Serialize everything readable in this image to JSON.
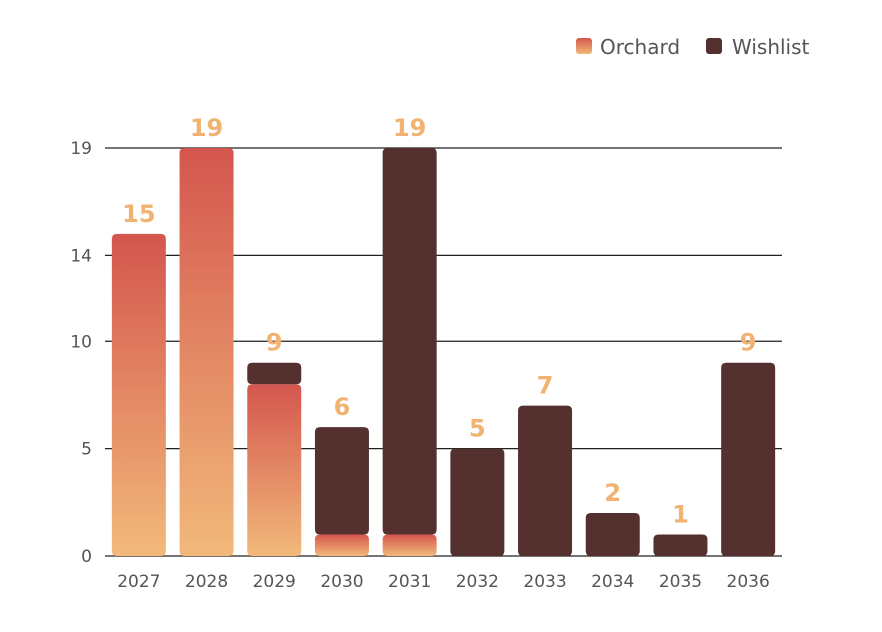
{
  "chart_data": {
    "type": "bar",
    "stacked": true,
    "categories": [
      "2027",
      "2028",
      "2029",
      "2030",
      "2031",
      "2032",
      "2033",
      "2034",
      "2035",
      "2036"
    ],
    "series": [
      {
        "name": "Orchard",
        "values": [
          15,
          19,
          8,
          1,
          1,
          0,
          0,
          0,
          0,
          0
        ]
      },
      {
        "name": "Wishlist",
        "values": [
          0,
          0,
          1,
          5,
          18,
          5,
          7,
          2,
          1,
          9
        ]
      }
    ],
    "totals": [
      15,
      19,
      9,
      6,
      19,
      5,
      7,
      2,
      1,
      9
    ],
    "y_ticks": [
      0,
      5,
      10,
      14,
      19
    ],
    "ylim": [
      0,
      19
    ],
    "grid": true,
    "legend_position": "top-right",
    "colors": {
      "orchard_top": "#D4564E",
      "orchard_bottom": "#F2B97A",
      "wishlist": "#54302F",
      "total_label": "#F0B372",
      "gridline": "#222222"
    }
  }
}
